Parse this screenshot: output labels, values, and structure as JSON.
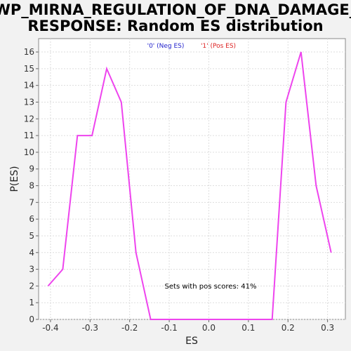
{
  "chart_data": {
    "type": "line",
    "title_lines": [
      "WP_MIRNA_REGULATION_OF_DNA_DAMAGE_",
      "RESPONSE: Random ES distribution"
    ],
    "xlabel": "ES",
    "ylabel": "P(ES)",
    "xlim": [
      -0.43,
      0.345
    ],
    "ylim": [
      0,
      16.8
    ],
    "xticks": [
      -0.4,
      -0.3,
      -0.2,
      -0.1,
      0.0,
      0.1,
      0.2,
      0.3
    ],
    "xtick_labels": [
      "-0.4",
      "-0.3",
      "-0.2",
      "-0.1",
      "0.0",
      "0.1",
      "0.2",
      "0.3"
    ],
    "yticks": [
      0,
      1,
      2,
      3,
      4,
      5,
      6,
      7,
      8,
      9,
      10,
      11,
      12,
      13,
      14,
      15,
      16
    ],
    "ytick_labels": [
      "0",
      "1",
      "2",
      "3",
      "4",
      "5",
      "6",
      "7",
      "8",
      "9",
      "10",
      "11",
      "12",
      "13",
      "14",
      "15",
      "16"
    ],
    "grid": true,
    "legend": {
      "placement": "top-center",
      "entries": [
        {
          "label": "'0' (Neg ES)",
          "color": "#2222cc"
        },
        {
          "label": "'1' (Pos ES)",
          "color": "#dd2222"
        }
      ]
    },
    "series": [
      {
        "color": "#ee44ee",
        "x": [
          -0.406,
          -0.369,
          -0.332,
          -0.295,
          -0.258,
          -0.221,
          -0.184,
          -0.147,
          -0.11,
          -0.073,
          -0.036,
          0.001,
          0.038,
          0.075,
          0.112,
          0.149,
          0.16,
          0.195,
          0.233,
          0.271,
          0.309
        ],
        "y": [
          2,
          3,
          11,
          11,
          15,
          13,
          4,
          0,
          0,
          0,
          0,
          0,
          0,
          0,
          0,
          0,
          0,
          13,
          16,
          8,
          4
        ]
      }
    ],
    "annotation": "Sets with pos scores: 41%"
  }
}
